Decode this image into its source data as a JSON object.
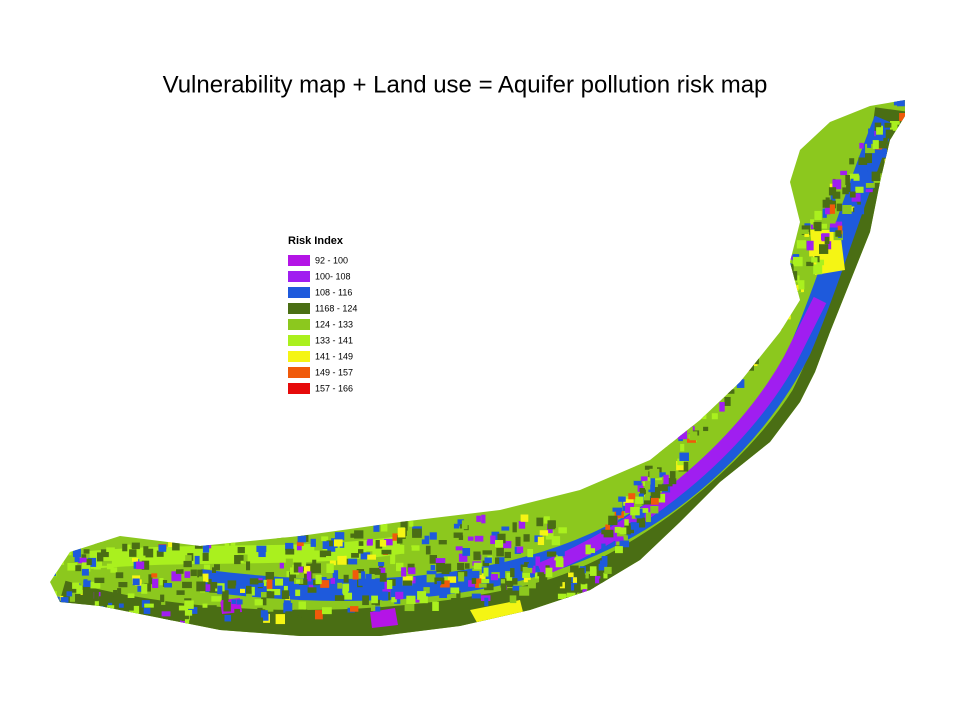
{
  "header": {
    "title": "Vulnerability map + Land use = Aquifer pollution risk map"
  },
  "legend": {
    "title": "Risk Index",
    "items": [
      {
        "label": "92 - 100",
        "color": "#b414e6"
      },
      {
        "label": "100- 108",
        "color": "#a01ef0"
      },
      {
        "label": "108 - 116",
        "color": "#1e5adc"
      },
      {
        "label": "1168 - 124",
        "color": "#4a6e14"
      },
      {
        "label": "124 - 133",
        "color": "#8cc81e"
      },
      {
        "label": "133 - 141",
        "color": "#aaf01e"
      },
      {
        "label": "141 - 149",
        "color": "#f5f514"
      },
      {
        "label": "149 - 157",
        "color": "#f05a0a"
      },
      {
        "label": "157 - 166",
        "color": "#e60a0a"
      }
    ]
  }
}
